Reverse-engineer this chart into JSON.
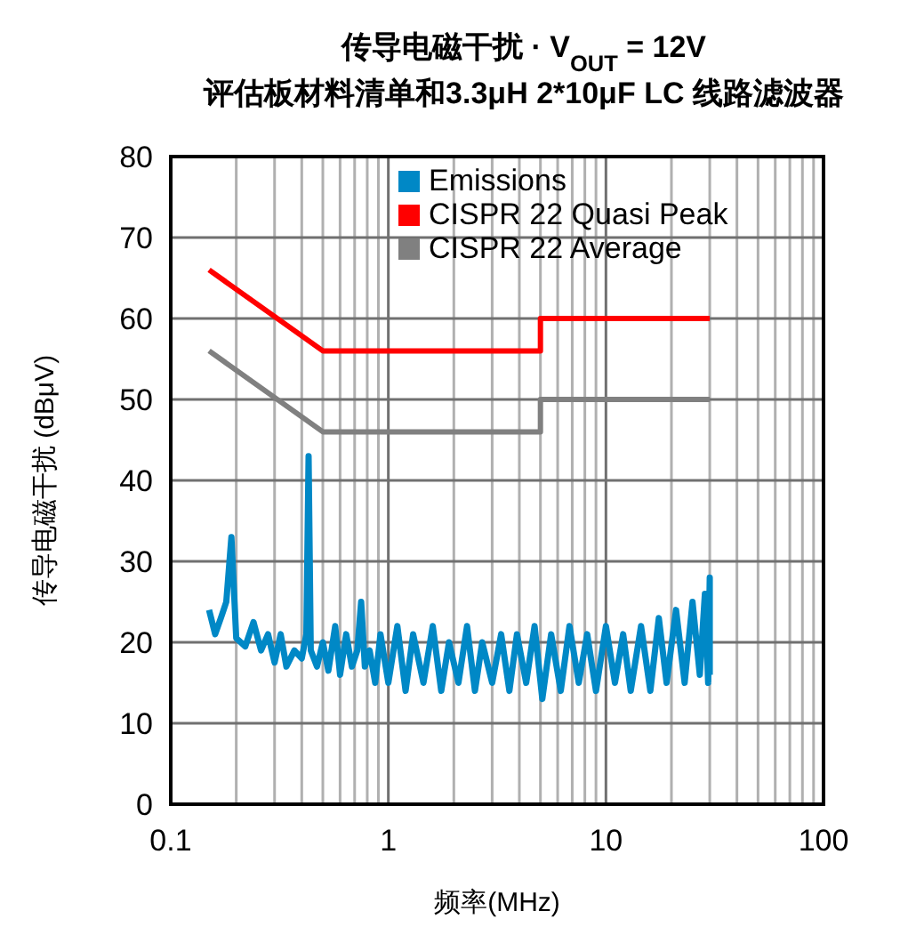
{
  "chart_data": {
    "type": "line",
    "title": "传导电磁干扰 · V$_{OUT}$ = 12V",
    "subtitle": "评估板材料清单和3.3μH 2*10μF LC 线路滤波器",
    "xlabel": "频率(MHz)",
    "ylabel": "传导电磁干扰 (dBμV)",
    "log": "x",
    "xlim": [
      0.1,
      100
    ],
    "ylim": [
      0,
      80
    ],
    "xticks": [
      0.1,
      {
        "value": 0.2,
        "label": null
      },
      {
        "value": 0.3,
        "label": null
      },
      {
        "value": 0.4,
        "label": null
      },
      {
        "value": 0.5,
        "label": null
      },
      {
        "value": 0.6,
        "label": null
      },
      {
        "value": 0.7,
        "label": null
      },
      {
        "value": 0.8,
        "label": null
      },
      {
        "value": 0.9,
        "label": null
      },
      1,
      {
        "value": 2,
        "label": null
      },
      {
        "value": 3,
        "label": null
      },
      {
        "value": 4,
        "label": null
      },
      {
        "value": 5,
        "label": null
      },
      {
        "value": 6,
        "label": null
      },
      {
        "value": 7,
        "label": null
      },
      {
        "value": 8,
        "label": null
      },
      {
        "value": 9,
        "label": null
      },
      10,
      {
        "value": 20,
        "label": null
      },
      {
        "value": 30,
        "label": null
      },
      {
        "value": 40,
        "label": null
      },
      {
        "value": 50,
        "label": null
      },
      {
        "value": 60,
        "label": null
      },
      {
        "value": 70,
        "label": null
      },
      {
        "value": 80,
        "label": null
      },
      {
        "value": 90,
        "label": null
      },
      100
    ],
    "yticks": [
      0,
      10,
      20,
      30,
      40,
      50,
      60,
      70,
      80
    ],
    "grid": true,
    "legend": "top",
    "line_style": "solid",
    "marker": "none",
    "series": [
      {
        "name": "Emissions",
        "color": "#0088c6",
        "x": [
          0.15,
          0.16,
          0.17,
          0.18,
          0.19,
          0.2,
          0.22,
          0.24,
          0.26,
          0.28,
          0.3,
          0.32,
          0.34,
          0.37,
          0.4,
          0.42,
          0.43,
          0.44,
          0.47,
          0.5,
          0.53,
          0.57,
          0.6,
          0.64,
          0.68,
          0.72,
          0.75,
          0.78,
          0.82,
          0.87,
          0.92,
          1.0,
          1.1,
          1.2,
          1.3,
          1.45,
          1.6,
          1.75,
          1.9,
          2.1,
          2.3,
          2.5,
          2.7,
          3.0,
          3.3,
          3.6,
          3.9,
          4.3,
          4.7,
          5.1,
          5.6,
          6.2,
          6.8,
          7.5,
          8.2,
          9.0,
          10,
          11,
          12,
          13,
          14.5,
          16,
          17.5,
          19,
          21,
          23,
          25,
          27,
          28.5,
          29.5,
          30,
          30
        ],
        "values": [
          24,
          21,
          23,
          25,
          33,
          20.5,
          19.5,
          22.5,
          19,
          21,
          17.5,
          21,
          17,
          19,
          18,
          21,
          43,
          19,
          17,
          20,
          16.5,
          22,
          16,
          21,
          17,
          19,
          25,
          17,
          19,
          15,
          21,
          15,
          22,
          14,
          21,
          15,
          22,
          14,
          20,
          15,
          22,
          14,
          20,
          15,
          21,
          14,
          21,
          15,
          22,
          13,
          21,
          14,
          22,
          15,
          21,
          14,
          22,
          15,
          21,
          14,
          22,
          14,
          23,
          15,
          24,
          15,
          25,
          16,
          26,
          15,
          28,
          16
        ]
      },
      {
        "name": "CISPR 22 Quasi Peak",
        "color": "#ff0000",
        "x": [
          0.15,
          0.5,
          5,
          5,
          30
        ],
        "values": [
          66,
          56,
          56,
          60,
          60
        ]
      },
      {
        "name": "CISPR 22 Average",
        "color": "#808080",
        "x": [
          0.15,
          0.5,
          5,
          5,
          30
        ],
        "values": [
          56,
          46,
          46,
          50,
          50
        ]
      }
    ]
  }
}
